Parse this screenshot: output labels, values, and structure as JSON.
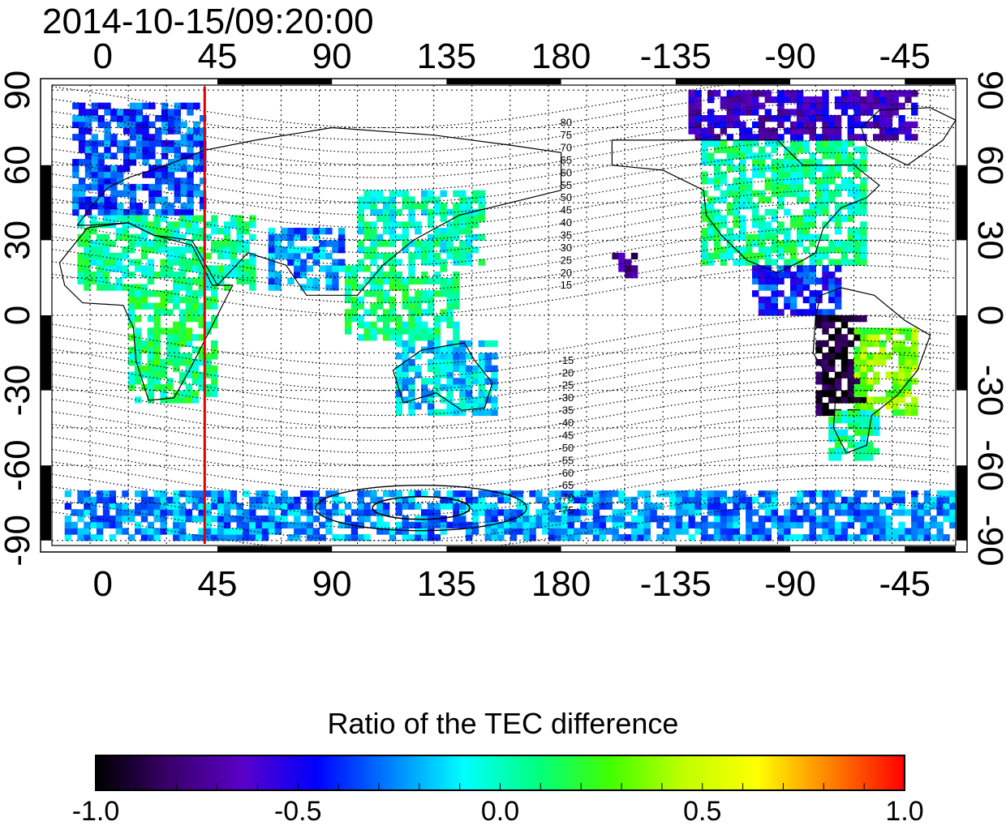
{
  "title": "2014-10-15/09:20:00",
  "map": {
    "top_lon_ticks": [
      "0",
      "45",
      "90",
      "135",
      "180",
      "-135",
      "-90",
      "-45"
    ],
    "bottom_lon_ticks": [
      "0",
      "45",
      "90",
      "135",
      "180",
      "-135",
      "-90",
      "-45"
    ],
    "left_lat_ticks": [
      "90",
      "60",
      "30",
      "0",
      "-30",
      "-60",
      "-90"
    ],
    "right_lat_ticks": [
      "90",
      "60",
      "30",
      "0",
      "-30",
      "-60",
      "-90"
    ],
    "lon_tick_values": [
      0,
      45,
      90,
      135,
      180,
      225,
      270,
      315
    ],
    "lat_tick_values": [
      90,
      60,
      30,
      0,
      -30,
      -60,
      -90
    ],
    "lon_range": [
      -20,
      335
    ],
    "lat_range": [
      -92,
      92
    ],
    "marker_longitude": 40,
    "marker_color": "#e00000",
    "magnetic_latitude_labels_north": [
      "80",
      "75",
      "70",
      "65",
      "60",
      "55",
      "50",
      "45",
      "40",
      "35",
      "30",
      "25",
      "20",
      "15"
    ],
    "magnetic_latitude_labels_south": [
      "-15",
      "-20",
      "-25",
      "-30",
      "-35",
      "-40",
      "-45",
      "-50",
      "-55",
      "-60",
      "-65",
      "-70",
      "-75"
    ],
    "data_regions": [
      {
        "name": "europe",
        "lon": [
          -12,
          40
        ],
        "lat": [
          40,
          85
        ],
        "value": -0.35
      },
      {
        "name": "north-africa-mideast",
        "lon": [
          -10,
          60
        ],
        "lat": [
          10,
          40
        ],
        "value": 0.05
      },
      {
        "name": "africa",
        "lon": [
          10,
          45
        ],
        "lat": [
          -35,
          10
        ],
        "value": 0.1
      },
      {
        "name": "asia-east",
        "lon": [
          100,
          150
        ],
        "lat": [
          20,
          50
        ],
        "value": 0.0
      },
      {
        "name": "india",
        "lon": [
          65,
          95
        ],
        "lat": [
          10,
          35
        ],
        "value": -0.25
      },
      {
        "name": "se-asia",
        "lon": [
          95,
          140
        ],
        "lat": [
          -10,
          20
        ],
        "value": 0.05
      },
      {
        "name": "australia",
        "lon": [
          115,
          155
        ],
        "lat": [
          -40,
          -12
        ],
        "value": -0.15
      },
      {
        "name": "north-america",
        "lon": [
          235,
          300
        ],
        "lat": [
          20,
          70
        ],
        "value": 0.05
      },
      {
        "name": "arctic-canada",
        "lon": [
          230,
          320
        ],
        "lat": [
          70,
          88
        ],
        "value": -0.6
      },
      {
        "name": "central-america",
        "lon": [
          255,
          290
        ],
        "lat": [
          0,
          20
        ],
        "value": -0.4
      },
      {
        "name": "south-america-west",
        "lon": [
          280,
          300
        ],
        "lat": [
          -40,
          0
        ],
        "value": -0.95
      },
      {
        "name": "south-america-east",
        "lon": [
          295,
          320
        ],
        "lat": [
          -40,
          -5
        ],
        "value": 0.35
      },
      {
        "name": "patagonia",
        "lon": [
          285,
          305
        ],
        "lat": [
          -58,
          -40
        ],
        "value": 0.05
      },
      {
        "name": "antarctica",
        "lon": [
          -15,
          335
        ],
        "lat": [
          -90,
          -72
        ],
        "value": -0.25
      },
      {
        "name": "pacific-patch",
        "lon": [
          200,
          210
        ],
        "lat": [
          15,
          25
        ],
        "value": -0.75
      }
    ]
  },
  "colorbar": {
    "label": "Ratio of the TEC difference",
    "ticks": [
      "-1.0",
      "-0.5",
      "0.0",
      "0.5",
      "1.0"
    ],
    "tick_values": [
      -1.0,
      -0.5,
      0.0,
      0.5,
      1.0
    ],
    "range": [
      -1.0,
      1.0
    ],
    "colors": [
      "#000000",
      "#3a006b",
      "#5a00c8",
      "#0000ff",
      "#0080ff",
      "#00ffff",
      "#00ff80",
      "#40ff00",
      "#c0ff00",
      "#ffff00",
      "#ff8000",
      "#ff0000"
    ]
  }
}
